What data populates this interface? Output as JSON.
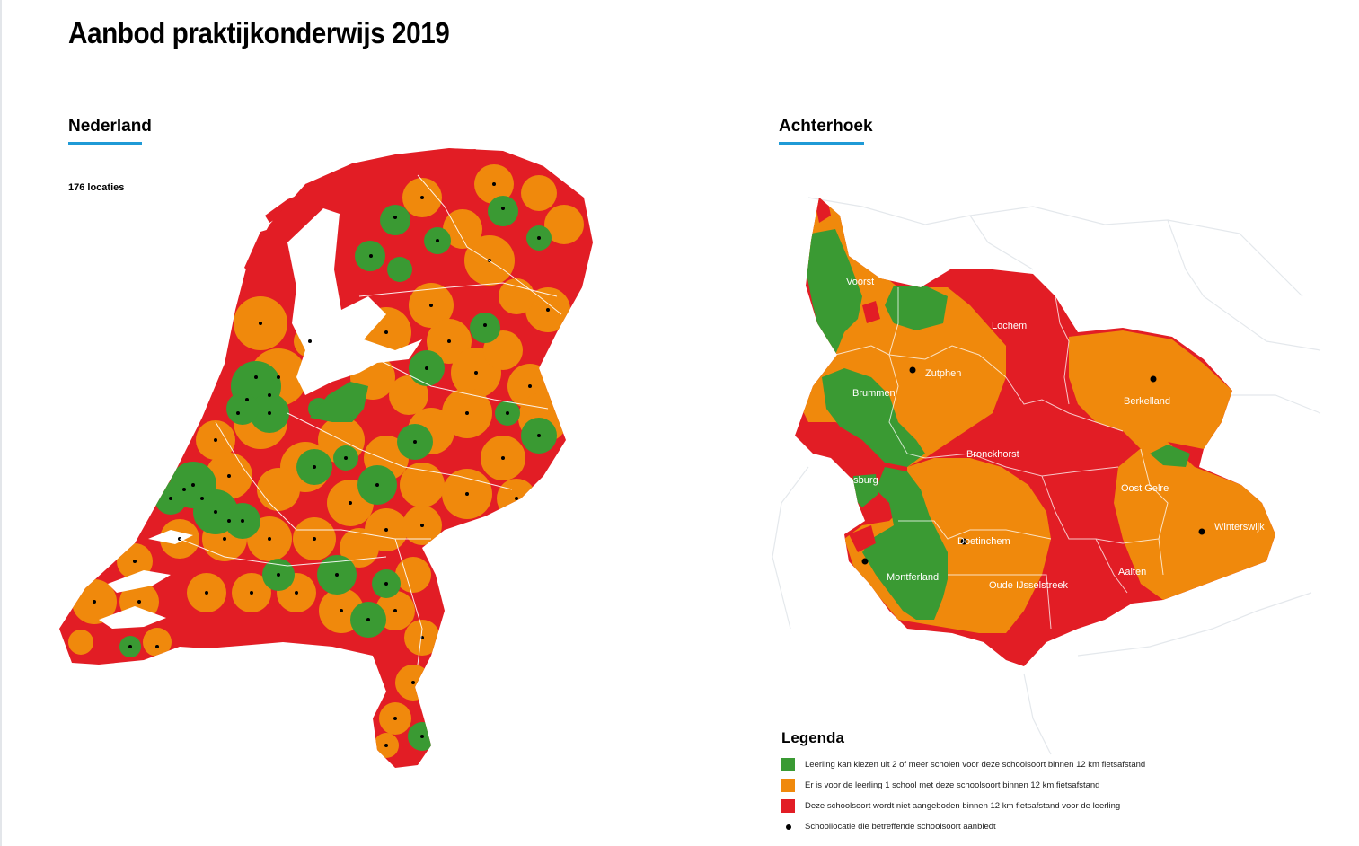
{
  "title": "Aanbod praktijkonderwijs 2019",
  "colors": {
    "green": "#3a9a33",
    "orange": "#f0890c",
    "red": "#e21d25",
    "dot": "#000000",
    "accent": "#1f9ad6"
  },
  "netherlands": {
    "heading": "Nederland",
    "count_label": "176 locaties"
  },
  "achterhoek": {
    "heading": "Achterhoek",
    "municipalities": [
      "Voorst",
      "Lochem",
      "Zutphen",
      "Brummen",
      "Berkelland",
      "Bronckhorst",
      "Doesburg",
      "Oost Gelre",
      "Winterswijk",
      "Doetinchem",
      "Montferland",
      "Oude IJsselstreek",
      "Aalten"
    ]
  },
  "legend": {
    "title": "Legenda",
    "items": [
      {
        "color": "green",
        "label": "Leerling kan kiezen uit 2 of meer scholen voor deze schoolsoort binnen 12 km fietsafstand"
      },
      {
        "color": "orange",
        "label": "Er is voor de leerling 1 school met deze schoolsoort binnen 12 km fietsafstand"
      },
      {
        "color": "red",
        "label": "Deze schoolsoort wordt niet aangeboden binnen 12 km fietsafstand voor de leerling"
      },
      {
        "color": "dot",
        "label": "Schoollocatie die betreffende schoolsoort aanbiedt"
      }
    ]
  }
}
